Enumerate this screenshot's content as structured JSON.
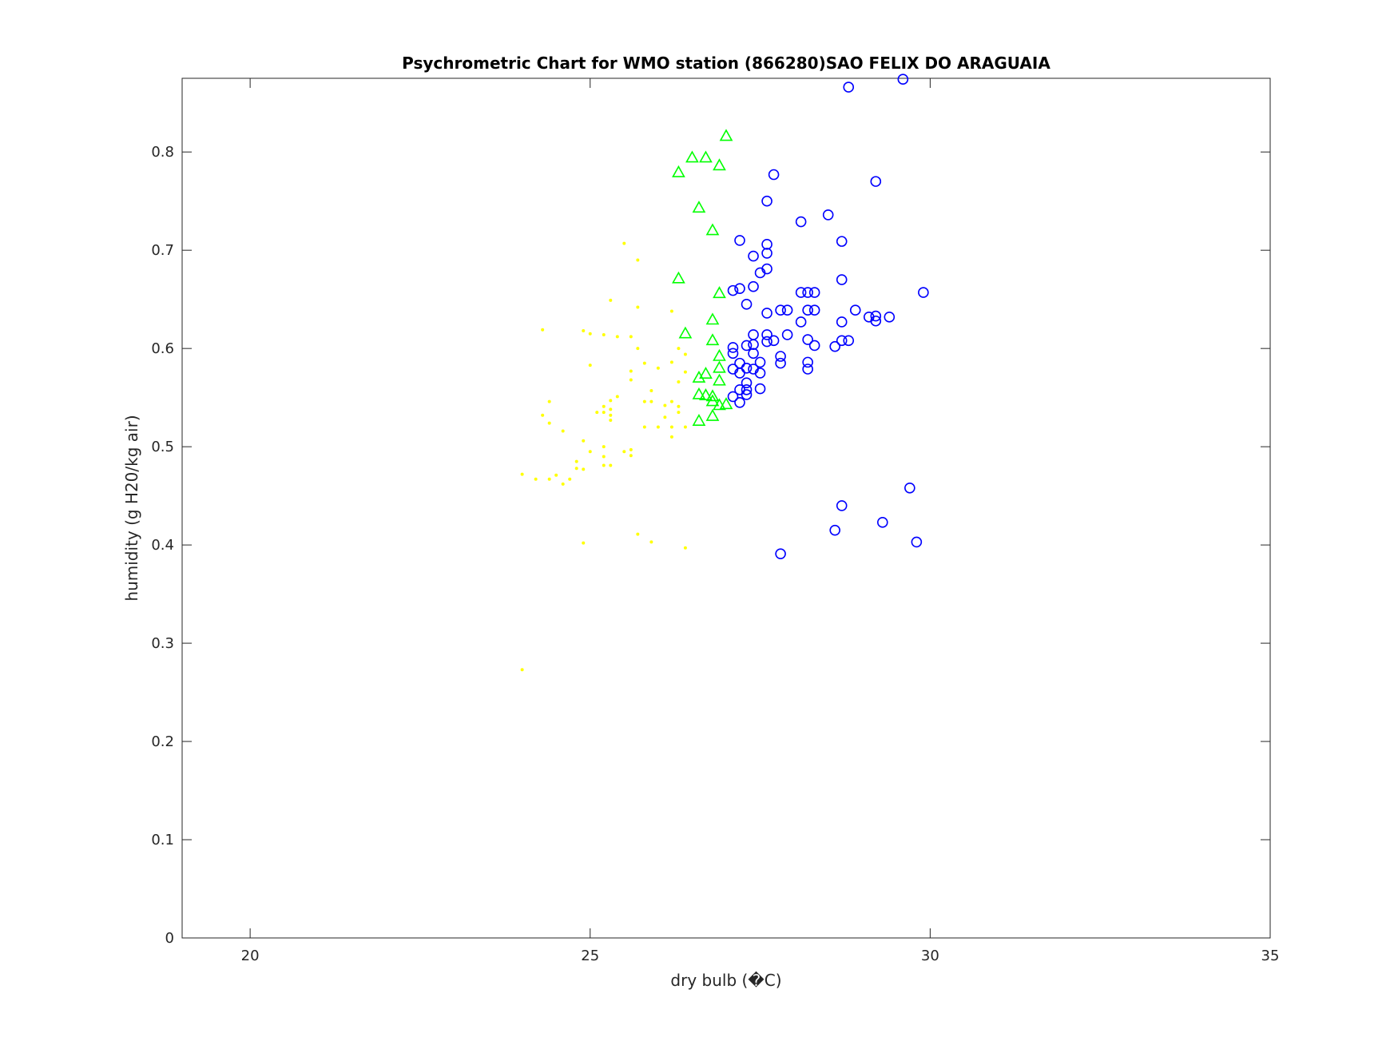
{
  "chart_data": {
    "type": "scatter",
    "title": "Psychrometric Chart for WMO station (866280)SAO FELIX DO ARAGUAIA",
    "xlabel": "dry bulb (�C)",
    "ylabel": "humidity (g H20/kg air)",
    "xlim": [
      19,
      35
    ],
    "ylim": [
      0,
      0.875
    ],
    "xticks": [
      20,
      25,
      30,
      35
    ],
    "xtick_labels": [
      "20",
      "25",
      "30",
      "35"
    ],
    "yticks": [
      0,
      0.1,
      0.2,
      0.3,
      0.4,
      0.5,
      0.6,
      0.7,
      0.8
    ],
    "ytick_labels": [
      "0",
      "0.1",
      "0.2",
      "0.3",
      "0.4",
      "0.5",
      "0.6",
      "0.7",
      "0.8"
    ],
    "grid": false,
    "series": [
      {
        "marker": "dot",
        "color": "#ffff00",
        "points": [
          [
            24.0,
            0.273
          ],
          [
            24.0,
            0.472
          ],
          [
            24.2,
            0.467
          ],
          [
            24.3,
            0.619
          ],
          [
            24.3,
            0.532
          ],
          [
            24.4,
            0.546
          ],
          [
            24.4,
            0.524
          ],
          [
            24.4,
            0.467
          ],
          [
            24.5,
            0.471
          ],
          [
            24.6,
            0.462
          ],
          [
            24.6,
            0.516
          ],
          [
            24.7,
            0.467
          ],
          [
            24.8,
            0.485
          ],
          [
            24.8,
            0.478
          ],
          [
            24.9,
            0.618
          ],
          [
            24.9,
            0.506
          ],
          [
            24.9,
            0.477
          ],
          [
            24.9,
            0.402
          ],
          [
            25.0,
            0.615
          ],
          [
            25.0,
            0.583
          ],
          [
            25.0,
            0.495
          ],
          [
            25.1,
            0.535
          ],
          [
            25.2,
            0.614
          ],
          [
            25.2,
            0.541
          ],
          [
            25.2,
            0.535
          ],
          [
            25.2,
            0.5
          ],
          [
            25.2,
            0.49
          ],
          [
            25.2,
            0.481
          ],
          [
            25.3,
            0.649
          ],
          [
            25.3,
            0.547
          ],
          [
            25.3,
            0.538
          ],
          [
            25.3,
            0.532
          ],
          [
            25.3,
            0.527
          ],
          [
            25.3,
            0.481
          ],
          [
            25.4,
            0.612
          ],
          [
            25.4,
            0.551
          ],
          [
            25.5,
            0.707
          ],
          [
            25.5,
            0.495
          ],
          [
            25.6,
            0.612
          ],
          [
            25.6,
            0.577
          ],
          [
            25.6,
            0.568
          ],
          [
            25.6,
            0.497
          ],
          [
            25.6,
            0.491
          ],
          [
            25.7,
            0.69
          ],
          [
            25.7,
            0.642
          ],
          [
            25.7,
            0.6
          ],
          [
            25.7,
            0.411
          ],
          [
            25.8,
            0.585
          ],
          [
            25.8,
            0.546
          ],
          [
            25.8,
            0.52
          ],
          [
            25.9,
            0.557
          ],
          [
            25.9,
            0.546
          ],
          [
            25.9,
            0.403
          ],
          [
            26.0,
            0.58
          ],
          [
            26.0,
            0.52
          ],
          [
            26.1,
            0.542
          ],
          [
            26.1,
            0.53
          ],
          [
            26.2,
            0.638
          ],
          [
            26.2,
            0.586
          ],
          [
            26.2,
            0.546
          ],
          [
            26.2,
            0.52
          ],
          [
            26.2,
            0.51
          ],
          [
            26.3,
            0.6
          ],
          [
            26.3,
            0.566
          ],
          [
            26.3,
            0.541
          ],
          [
            26.3,
            0.535
          ],
          [
            26.4,
            0.594
          ],
          [
            26.4,
            0.576
          ],
          [
            26.4,
            0.52
          ],
          [
            26.4,
            0.397
          ]
        ]
      },
      {
        "marker": "triangle",
        "color": "#00ff00",
        "points": [
          [
            26.3,
            0.779
          ],
          [
            26.3,
            0.671
          ],
          [
            26.4,
            0.615
          ],
          [
            26.5,
            0.794
          ],
          [
            26.6,
            0.743
          ],
          [
            26.6,
            0.57
          ],
          [
            26.6,
            0.553
          ],
          [
            26.6,
            0.526
          ],
          [
            26.7,
            0.794
          ],
          [
            26.7,
            0.574
          ],
          [
            26.7,
            0.552
          ],
          [
            26.8,
            0.72
          ],
          [
            26.8,
            0.629
          ],
          [
            26.8,
            0.608
          ],
          [
            26.8,
            0.551
          ],
          [
            26.8,
            0.546
          ],
          [
            26.8,
            0.531
          ],
          [
            26.9,
            0.786
          ],
          [
            26.9,
            0.656
          ],
          [
            26.9,
            0.592
          ],
          [
            26.9,
            0.58
          ],
          [
            26.9,
            0.567
          ],
          [
            26.9,
            0.542
          ],
          [
            27.0,
            0.816
          ],
          [
            27.0,
            0.543
          ]
        ]
      },
      {
        "marker": "circle",
        "color": "#0000ff",
        "points": [
          [
            27.1,
            0.659
          ],
          [
            27.1,
            0.601
          ],
          [
            27.1,
            0.595
          ],
          [
            27.1,
            0.579
          ],
          [
            27.1,
            0.551
          ],
          [
            27.2,
            0.71
          ],
          [
            27.2,
            0.661
          ],
          [
            27.2,
            0.585
          ],
          [
            27.2,
            0.575
          ],
          [
            27.2,
            0.558
          ],
          [
            27.2,
            0.545
          ],
          [
            27.3,
            0.645
          ],
          [
            27.3,
            0.603
          ],
          [
            27.3,
            0.58
          ],
          [
            27.3,
            0.565
          ],
          [
            27.3,
            0.558
          ],
          [
            27.3,
            0.553
          ],
          [
            27.4,
            0.694
          ],
          [
            27.4,
            0.663
          ],
          [
            27.4,
            0.614
          ],
          [
            27.4,
            0.604
          ],
          [
            27.4,
            0.595
          ],
          [
            27.4,
            0.579
          ],
          [
            27.5,
            0.677
          ],
          [
            27.5,
            0.586
          ],
          [
            27.5,
            0.575
          ],
          [
            27.5,
            0.559
          ],
          [
            27.6,
            0.75
          ],
          [
            27.6,
            0.706
          ],
          [
            27.6,
            0.697
          ],
          [
            27.6,
            0.681
          ],
          [
            27.6,
            0.636
          ],
          [
            27.6,
            0.614
          ],
          [
            27.6,
            0.607
          ],
          [
            27.7,
            0.777
          ],
          [
            27.7,
            0.608
          ],
          [
            27.8,
            0.639
          ],
          [
            27.8,
            0.592
          ],
          [
            27.8,
            0.585
          ],
          [
            27.8,
            0.391
          ],
          [
            27.9,
            0.639
          ],
          [
            27.9,
            0.614
          ],
          [
            28.1,
            0.729
          ],
          [
            28.1,
            0.657
          ],
          [
            28.1,
            0.627
          ],
          [
            28.2,
            0.657
          ],
          [
            28.2,
            0.639
          ],
          [
            28.2,
            0.609
          ],
          [
            28.2,
            0.586
          ],
          [
            28.2,
            0.579
          ],
          [
            28.3,
            0.657
          ],
          [
            28.3,
            0.639
          ],
          [
            28.3,
            0.603
          ],
          [
            28.5,
            0.736
          ],
          [
            28.6,
            0.602
          ],
          [
            28.6,
            0.415
          ],
          [
            28.7,
            0.709
          ],
          [
            28.7,
            0.67
          ],
          [
            28.7,
            0.627
          ],
          [
            28.7,
            0.608
          ],
          [
            28.7,
            0.44
          ],
          [
            28.8,
            0.866
          ],
          [
            28.8,
            0.608
          ],
          [
            28.9,
            0.639
          ],
          [
            29.1,
            0.632
          ],
          [
            29.2,
            0.77
          ],
          [
            29.2,
            0.633
          ],
          [
            29.2,
            0.628
          ],
          [
            29.3,
            0.423
          ],
          [
            29.4,
            0.632
          ],
          [
            29.6,
            0.874
          ],
          [
            29.7,
            0.458
          ],
          [
            29.8,
            0.403
          ],
          [
            29.9,
            0.657
          ]
        ]
      }
    ]
  }
}
